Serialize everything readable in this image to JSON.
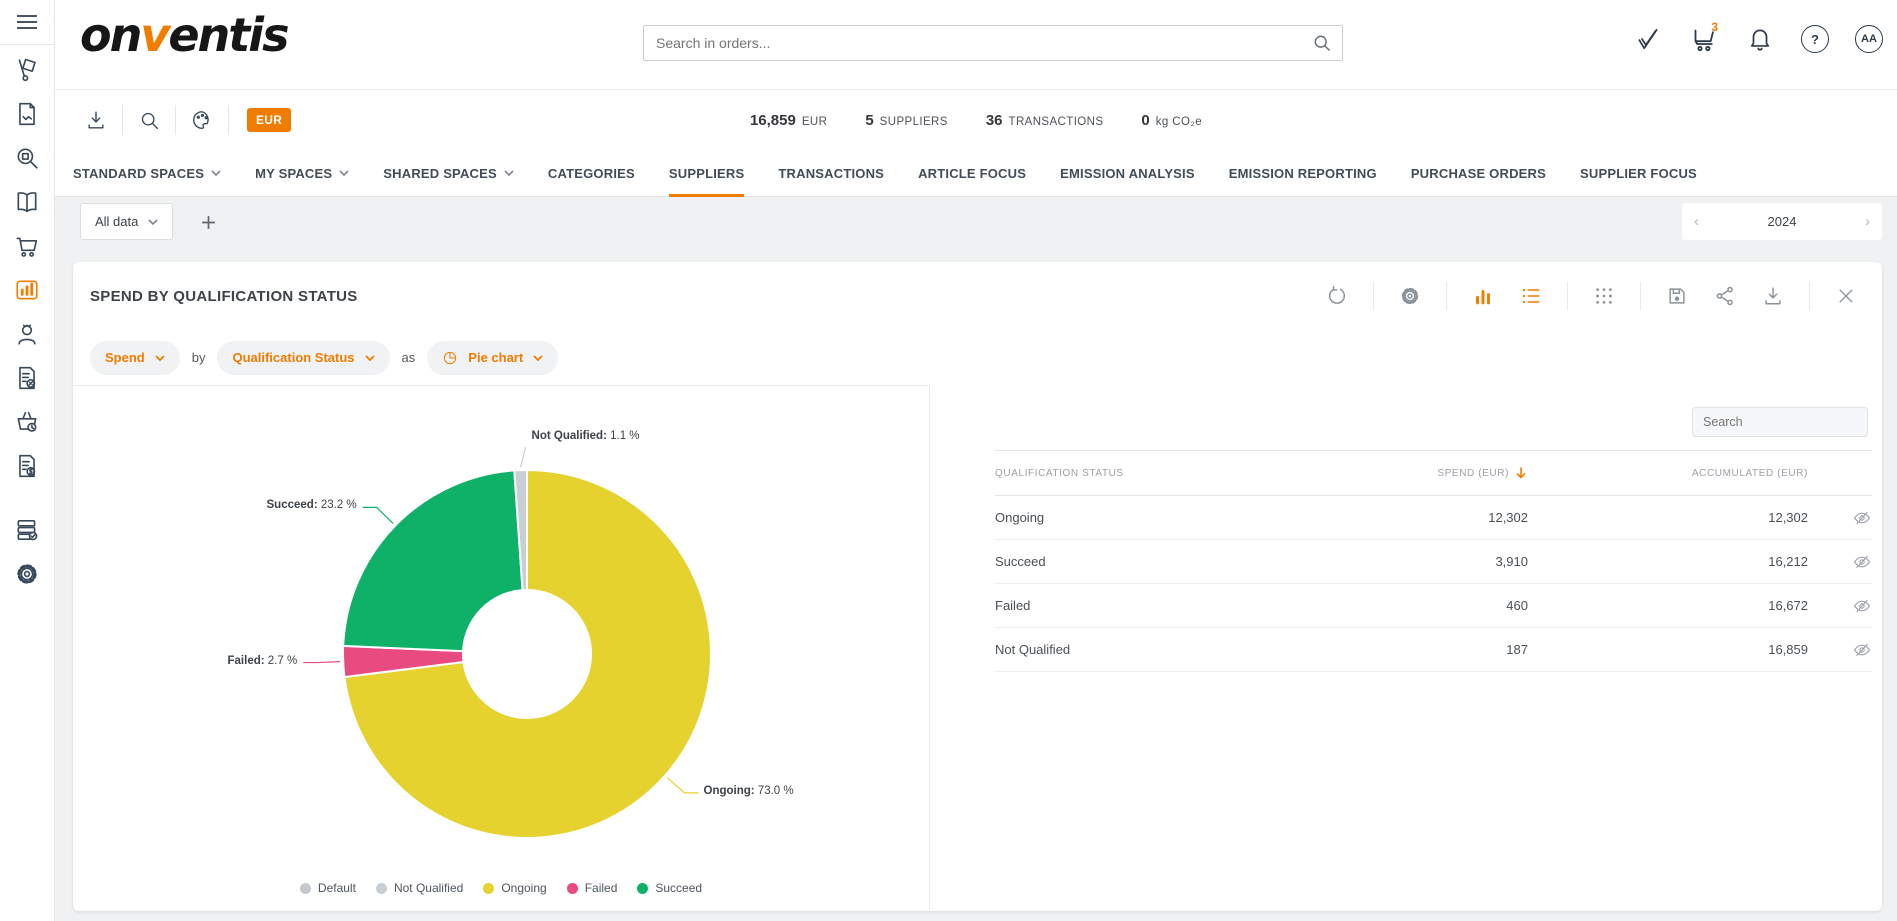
{
  "header": {
    "logo": {
      "pre": "on",
      "v": "v",
      "post": "entis"
    },
    "search_placeholder": "Search in orders...",
    "cart_badge": "3",
    "avatar": "AA",
    "help": "?"
  },
  "toolbar": {
    "currency_badge": "EUR"
  },
  "stats": [
    {
      "value": "16,859",
      "label": "EUR"
    },
    {
      "value": "5",
      "label": "SUPPLIERS"
    },
    {
      "value": "36",
      "label": "TRANSACTIONS"
    },
    {
      "value": "0",
      "label": "kg CO₂e"
    }
  ],
  "tabs": [
    {
      "label": "STANDARD SPACES",
      "dropdown": true,
      "active": false
    },
    {
      "label": "MY SPACES",
      "dropdown": true,
      "active": false
    },
    {
      "label": "SHARED SPACES",
      "dropdown": true,
      "active": false
    },
    {
      "label": "CATEGORIES",
      "dropdown": false,
      "active": false
    },
    {
      "label": "SUPPLIERS",
      "dropdown": false,
      "active": true
    },
    {
      "label": "TRANSACTIONS",
      "dropdown": false,
      "active": false
    },
    {
      "label": "ARTICLE FOCUS",
      "dropdown": false,
      "active": false
    },
    {
      "label": "EMISSION ANALYSIS",
      "dropdown": false,
      "active": false
    },
    {
      "label": "EMISSION REPORTING",
      "dropdown": false,
      "active": false
    },
    {
      "label": "PURCHASE ORDERS",
      "dropdown": false,
      "active": false
    },
    {
      "label": "SUPPLIER FOCUS",
      "dropdown": false,
      "active": false
    }
  ],
  "filters": {
    "scope": "All data",
    "year": "2024",
    "prev": "‹",
    "next": "›"
  },
  "card": {
    "title": "SPEND BY QUALIFICATION STATUS",
    "query": {
      "measure": "Spend",
      "by_label": "by",
      "dimension": "Qualification Status",
      "as_label": "as",
      "chart_type": "Pie chart"
    }
  },
  "panel": {
    "search_placeholder": "Search"
  },
  "table": {
    "columns": [
      "QUALIFICATION STATUS",
      "SPEND (EUR)",
      "ACCUMULATED (EUR)"
    ],
    "sort_column": "SPEND (EUR)",
    "sort_direction": "desc",
    "rows": [
      {
        "status": "Ongoing",
        "spend": "12,302",
        "accumulated": "12,302"
      },
      {
        "status": "Succeed",
        "spend": "3,910",
        "accumulated": "16,212"
      },
      {
        "status": "Failed",
        "spend": "460",
        "accumulated": "16,672"
      },
      {
        "status": "Not Qualified",
        "spend": "187",
        "accumulated": "16,859"
      }
    ]
  },
  "chart_data": {
    "type": "pie",
    "donut": true,
    "title": "SPEND BY QUALIFICATION STATUS",
    "unit": "EUR",
    "slices": [
      {
        "label": "Ongoing",
        "percent": 73.0,
        "value": 12302,
        "color": "#e6d22f"
      },
      {
        "label": "Failed",
        "percent": 2.7,
        "value": 460,
        "color": "#e94a80"
      },
      {
        "label": "Succeed",
        "percent": 23.2,
        "value": 3910,
        "color": "#0fb169"
      },
      {
        "label": "Not Qualified",
        "percent": 1.1,
        "value": 187,
        "color": "#c8ced3"
      }
    ],
    "legend": [
      {
        "label": "Default",
        "color": "#c3c9cf"
      },
      {
        "label": "Not Qualified",
        "color": "#c8ced3"
      },
      {
        "label": "Ongoing",
        "color": "#e6d22f"
      },
      {
        "label": "Failed",
        "color": "#e94a80"
      },
      {
        "label": "Succeed",
        "color": "#0fb169"
      }
    ],
    "legend_position": "bottom"
  },
  "colors": {
    "accent": "#f07c00"
  }
}
